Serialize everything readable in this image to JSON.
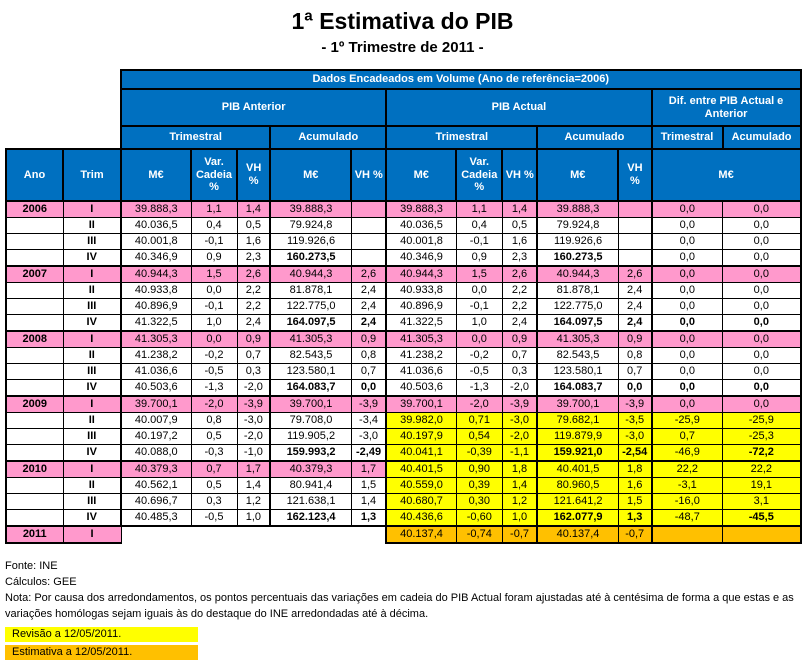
{
  "title": "1ª Estimativa do PIB",
  "subtitle": "- 1º Trimestre de 2011 -",
  "colors": {
    "header_blue": "#0070C0",
    "pink": "#FF99CC",
    "yellow": "#FFFF00",
    "orange": "#FFC000",
    "border": "#000000"
  },
  "table": {
    "top_header": "Dados Encadeados em Volume (Ano de referência=2006)",
    "groups": {
      "anterior": "PIB Anterior",
      "actual": "PIB Actual",
      "dif": "Dif. entre PIB Actual e Anterior"
    },
    "subgroups": {
      "trimestral": "Trimestral",
      "acumulado": "Acumulado"
    },
    "col_headers": {
      "ano": "Ano",
      "trim": "Trim",
      "me": "M€",
      "var_cadeia": "Var. Cadeia %",
      "vh": "VH %"
    },
    "rows": [
      {
        "ano": "2006",
        "trim": "I",
        "left": "pink",
        "right": "pink",
        "year_start": true,
        "anterior_hidden": false,
        "bold": [],
        "cells": [
          "39.888,3",
          "1,1",
          "1,4",
          "39.888,3",
          "",
          "39.888,3",
          "1,1",
          "1,4",
          "39.888,3",
          "",
          "0,0",
          "0,0"
        ]
      },
      {
        "ano": "",
        "trim": "II",
        "left": "white",
        "right": "white",
        "year_start": false,
        "anterior_hidden": false,
        "bold": [],
        "cells": [
          "40.036,5",
          "0,4",
          "0,5",
          "79.924,8",
          "",
          "40.036,5",
          "0,4",
          "0,5",
          "79.924,8",
          "",
          "0,0",
          "0,0"
        ]
      },
      {
        "ano": "",
        "trim": "III",
        "left": "white",
        "right": "white",
        "year_start": false,
        "anterior_hidden": false,
        "bold": [],
        "cells": [
          "40.001,8",
          "-0,1",
          "1,6",
          "119.926,6",
          "",
          "40.001,8",
          "-0,1",
          "1,6",
          "119.926,6",
          "",
          "0,0",
          "0,0"
        ]
      },
      {
        "ano": "",
        "trim": "IV",
        "left": "white",
        "right": "white",
        "year_start": false,
        "anterior_hidden": false,
        "bold": [
          3,
          8
        ],
        "cells": [
          "40.346,9",
          "0,9",
          "2,3",
          "160.273,5",
          "",
          "40.346,9",
          "0,9",
          "2,3",
          "160.273,5",
          "",
          "0,0",
          "0,0"
        ]
      },
      {
        "ano": "2007",
        "trim": "I",
        "left": "pink",
        "right": "pink",
        "year_start": true,
        "anterior_hidden": false,
        "bold": [],
        "cells": [
          "40.944,3",
          "1,5",
          "2,6",
          "40.944,3",
          "2,6",
          "40.944,3",
          "1,5",
          "2,6",
          "40.944,3",
          "2,6",
          "0,0",
          "0,0"
        ]
      },
      {
        "ano": "",
        "trim": "II",
        "left": "white",
        "right": "white",
        "year_start": false,
        "anterior_hidden": false,
        "bold": [],
        "cells": [
          "40.933,8",
          "0,0",
          "2,2",
          "81.878,1",
          "2,4",
          "40.933,8",
          "0,0",
          "2,2",
          "81.878,1",
          "2,4",
          "0,0",
          "0,0"
        ]
      },
      {
        "ano": "",
        "trim": "III",
        "left": "white",
        "right": "white",
        "year_start": false,
        "anterior_hidden": false,
        "bold": [],
        "cells": [
          "40.896,9",
          "-0,1",
          "2,2",
          "122.775,0",
          "2,4",
          "40.896,9",
          "-0,1",
          "2,2",
          "122.775,0",
          "2,4",
          "0,0",
          "0,0"
        ]
      },
      {
        "ano": "",
        "trim": "IV",
        "left": "white",
        "right": "white",
        "year_start": false,
        "anterior_hidden": false,
        "bold": [
          3,
          4,
          8,
          9,
          10,
          11
        ],
        "cells": [
          "41.322,5",
          "1,0",
          "2,4",
          "164.097,5",
          "2,4",
          "41.322,5",
          "1,0",
          "2,4",
          "164.097,5",
          "2,4",
          "0,0",
          "0,0"
        ]
      },
      {
        "ano": "2008",
        "trim": "I",
        "left": "pink",
        "right": "pink",
        "year_start": true,
        "anterior_hidden": false,
        "bold": [],
        "cells": [
          "41.305,3",
          "0,0",
          "0,9",
          "41.305,3",
          "0,9",
          "41.305,3",
          "0,0",
          "0,9",
          "41.305,3",
          "0,9",
          "0,0",
          "0,0"
        ]
      },
      {
        "ano": "",
        "trim": "II",
        "left": "white",
        "right": "white",
        "year_start": false,
        "anterior_hidden": false,
        "bold": [],
        "cells": [
          "41.238,2",
          "-0,2",
          "0,7",
          "82.543,5",
          "0,8",
          "41.238,2",
          "-0,2",
          "0,7",
          "82.543,5",
          "0,8",
          "0,0",
          "0,0"
        ]
      },
      {
        "ano": "",
        "trim": "III",
        "left": "white",
        "right": "white",
        "year_start": false,
        "anterior_hidden": false,
        "bold": [],
        "cells": [
          "41.036,6",
          "-0,5",
          "0,3",
          "123.580,1",
          "0,7",
          "41.036,6",
          "-0,5",
          "0,3",
          "123.580,1",
          "0,7",
          "0,0",
          "0,0"
        ]
      },
      {
        "ano": "",
        "trim": "IV",
        "left": "white",
        "right": "white",
        "year_start": false,
        "anterior_hidden": false,
        "bold": [
          3,
          4,
          8,
          9,
          10,
          11
        ],
        "cells": [
          "40.503,6",
          "-1,3",
          "-2,0",
          "164.083,7",
          "0,0",
          "40.503,6",
          "-1,3",
          "-2,0",
          "164.083,7",
          "0,0",
          "0,0",
          "0,0"
        ]
      },
      {
        "ano": "2009",
        "trim": "I",
        "left": "pink",
        "right": "pink",
        "year_start": true,
        "anterior_hidden": false,
        "bold": [],
        "cells": [
          "39.700,1",
          "-2,0",
          "-3,9",
          "39.700,1",
          "-3,9",
          "39.700,1",
          "-2,0",
          "-3,9",
          "39.700,1",
          "-3,9",
          "0,0",
          "0,0"
        ]
      },
      {
        "ano": "",
        "trim": "II",
        "left": "white",
        "right": "yellow",
        "year_start": false,
        "anterior_hidden": false,
        "bold": [],
        "cells": [
          "40.007,9",
          "0,8",
          "-3,0",
          "79.708,0",
          "-3,4",
          "39.982,0",
          "0,71",
          "-3,0",
          "79.682,1",
          "-3,5",
          "-25,9",
          "-25,9"
        ]
      },
      {
        "ano": "",
        "trim": "III",
        "left": "white",
        "right": "yellow",
        "year_start": false,
        "anterior_hidden": false,
        "bold": [],
        "cells": [
          "40.197,2",
          "0,5",
          "-2,0",
          "119.905,2",
          "-3,0",
          "40.197,9",
          "0,54",
          "-2,0",
          "119.879,9",
          "-3,0",
          "0,7",
          "-25,3"
        ]
      },
      {
        "ano": "",
        "trim": "IV",
        "left": "white",
        "right": "yellow",
        "year_start": false,
        "anterior_hidden": false,
        "bold": [
          3,
          4,
          8,
          9,
          11
        ],
        "cells": [
          "40.088,0",
          "-0,3",
          "-1,0",
          "159.993,2",
          "-2,49",
          "40.041,1",
          "-0,39",
          "-1,1",
          "159.921,0",
          "-2,54",
          "-46,9",
          "-72,2"
        ]
      },
      {
        "ano": "2010",
        "trim": "I",
        "left": "pink",
        "right": "yellow",
        "year_start": true,
        "anterior_hidden": false,
        "bold": [],
        "cells": [
          "40.379,3",
          "0,7",
          "1,7",
          "40.379,3",
          "1,7",
          "40.401,5",
          "0,90",
          "1,8",
          "40.401,5",
          "1,8",
          "22,2",
          "22,2"
        ]
      },
      {
        "ano": "",
        "trim": "II",
        "left": "white",
        "right": "yellow",
        "year_start": false,
        "anterior_hidden": false,
        "bold": [],
        "cells": [
          "40.562,1",
          "0,5",
          "1,4",
          "80.941,4",
          "1,5",
          "40.559,0",
          "0,39",
          "1,4",
          "80.960,5",
          "1,6",
          "-3,1",
          "19,1"
        ]
      },
      {
        "ano": "",
        "trim": "III",
        "left": "white",
        "right": "yellow",
        "year_start": false,
        "anterior_hidden": false,
        "bold": [],
        "cells": [
          "40.696,7",
          "0,3",
          "1,2",
          "121.638,1",
          "1,4",
          "40.680,7",
          "0,30",
          "1,2",
          "121.641,2",
          "1,5",
          "-16,0",
          "3,1"
        ]
      },
      {
        "ano": "",
        "trim": "IV",
        "left": "white",
        "right": "yellow",
        "year_start": false,
        "anterior_hidden": false,
        "thick_bottom": true,
        "bold": [
          3,
          4,
          8,
          9,
          11
        ],
        "cells": [
          "40.485,3",
          "-0,5",
          "1,0",
          "162.123,4",
          "1,3",
          "40.436,6",
          "-0,60",
          "1,0",
          "162.077,9",
          "1,3",
          "-48,7",
          "-45,5"
        ]
      },
      {
        "ano": "2011",
        "trim": "I",
        "left": "pink",
        "right": "orange",
        "year_start": true,
        "anterior_hidden": true,
        "bold": [],
        "cells": [
          "",
          "",
          "",
          "",
          "",
          "40.137,4",
          "-0,74",
          "-0,7",
          "40.137,4",
          "-0,7",
          "",
          ""
        ]
      }
    ]
  },
  "footer": {
    "fonte": "Fonte: INE",
    "calculos": "Cálculos: GEE",
    "nota": "Nota: Por causa dos arredondamentos, os pontos percentuais das variações em cadeia do PIB Actual foram ajustadas até à centésima de forma a que estas e as variações homólogas sejam iguais às do destaque do INE arredondadas até à décima.",
    "legend": [
      {
        "label": "Revisão a 12/05/2011.",
        "color": "#FFFF00"
      },
      {
        "label": "Estimativa a 12/05/2011.",
        "color": "#FFC000"
      }
    ]
  }
}
